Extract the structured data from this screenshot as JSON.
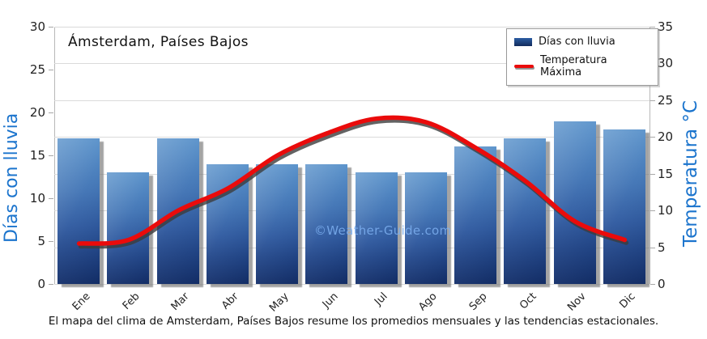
{
  "chart_data": {
    "type": "bar+line",
    "title": "Ámsterdam, Países Bajos",
    "categories": [
      "Ene",
      "Feb",
      "Mar",
      "Abr",
      "May",
      "Jun",
      "Jul",
      "Ago",
      "Sep",
      "Oct",
      "Nov",
      "Dic"
    ],
    "series": [
      {
        "name": "Días con lluvia",
        "type": "bar",
        "axis": "left",
        "color": "#1e4387",
        "values": [
          17,
          13,
          17,
          14,
          14,
          14,
          13,
          13,
          16,
          17,
          19,
          18
        ]
      },
      {
        "name": "Temperatura Máxima",
        "type": "line",
        "axis": "right",
        "color": "#ea0b0b",
        "values": [
          5.5,
          6,
          10,
          13,
          17.5,
          20.5,
          22.5,
          22,
          18.5,
          14,
          8.5,
          6
        ]
      }
    ],
    "left_axis": {
      "label": "Días con lluvia",
      "min": 0,
      "max": 30,
      "ticks": [
        0,
        5,
        10,
        15,
        20,
        25,
        30
      ]
    },
    "right_axis": {
      "label": "Temperatura °C",
      "min": 0,
      "max": 35,
      "ticks": [
        0,
        5,
        10,
        15,
        20,
        25,
        30,
        35
      ]
    },
    "legend_position": "top-right",
    "grid": "horizontal"
  },
  "page": {
    "watermark": "©Weather-Guide.com",
    "caption": "El mapa del clima de Amsterdam, Países Bajos resume los promedios mensuales y las tendencias estacionales."
  },
  "colors": {
    "axis_label_blue": "#1b74cd",
    "bar_gradient_top": "#4f8bc7",
    "bar_gradient_bottom": "#132f6b",
    "line_red": "#ea0b0b",
    "line_shadow": "#3c3c3c",
    "grid_gray": "#dadada",
    "watermark_blue": "#7fb0e8"
  }
}
